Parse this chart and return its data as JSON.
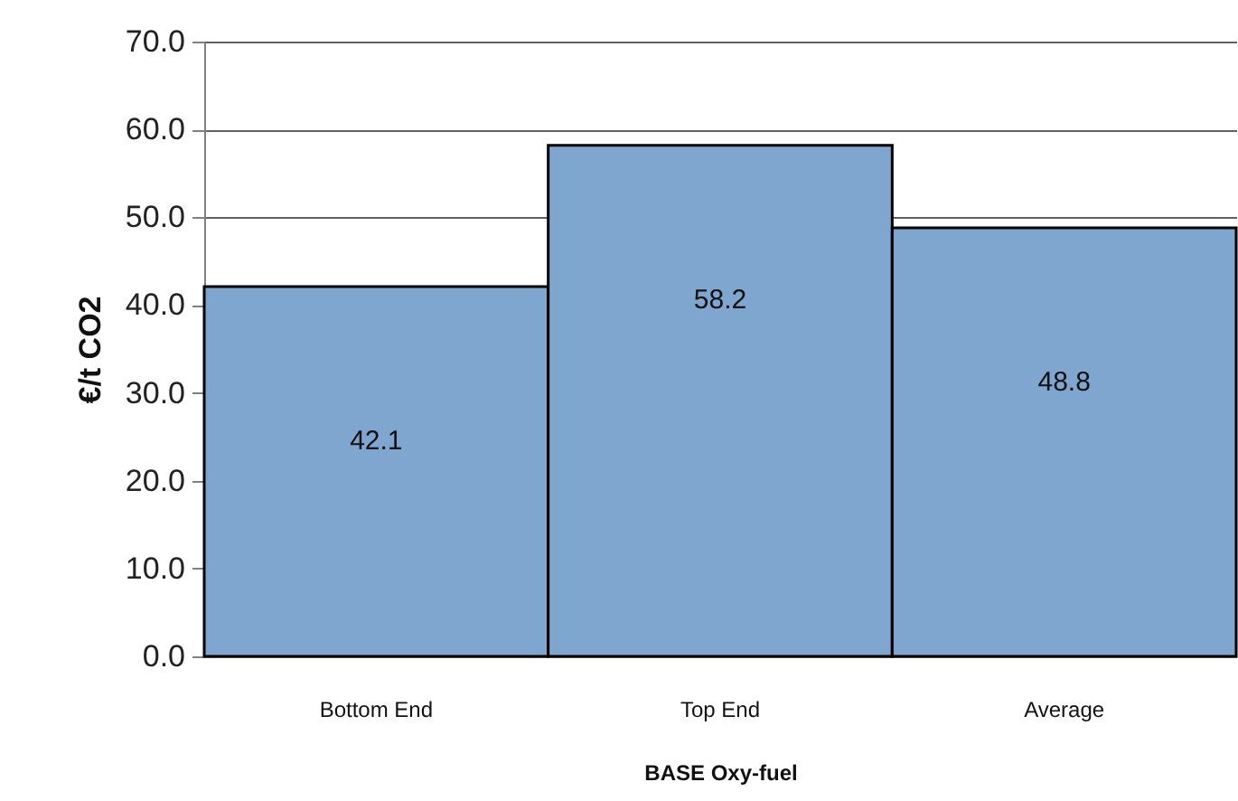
{
  "chart_data": {
    "type": "bar",
    "xlabel": "BASE Oxy-fuel",
    "ylabel": "€/t CO2",
    "categories": [
      "Bottom End",
      "Top End",
      "Average"
    ],
    "values": [
      42.1,
      58.2,
      48.8
    ],
    "color": "#7ea6cf",
    "ylim": [
      0,
      70
    ],
    "yticks": [
      {
        "value": 0,
        "label": "0.0"
      },
      {
        "value": 10,
        "label": "10.0"
      },
      {
        "value": 20,
        "label": "20.0"
      },
      {
        "value": 30,
        "label": "30.0"
      },
      {
        "value": 40,
        "label": "40.0"
      },
      {
        "value": 50,
        "label": "50.0"
      },
      {
        "value": 60,
        "label": "60.0"
      },
      {
        "value": 70,
        "label": "70.0"
      }
    ],
    "grid": "y",
    "data_labels": true
  }
}
